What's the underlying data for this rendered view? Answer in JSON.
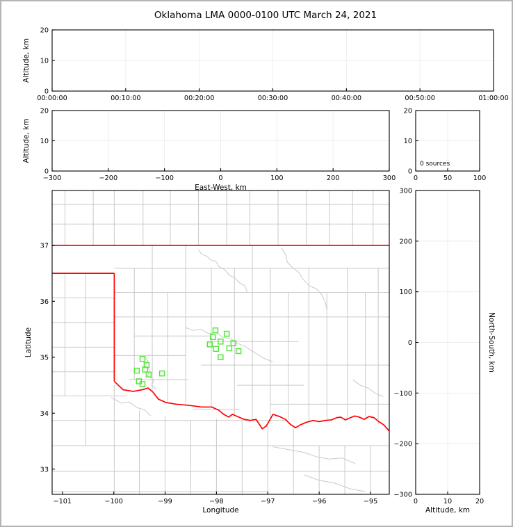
{
  "figure": {
    "title": "Oklahoma LMA 0000-0100 UTC March 24, 2021"
  },
  "style": {
    "background": "#ffffff",
    "frame_border": "#b4b4b4",
    "axis_color": "#000000",
    "grid_color": "#ededed",
    "county_color": "#c9c9c9",
    "state_border_color": "#ff0000",
    "source_color": "#55e63c"
  },
  "chart_data": [
    {
      "id": "time_height",
      "type": "scatter",
      "title": "",
      "xlabel": "",
      "ylabel": "Altitude, km",
      "xlim": [
        0,
        6
      ],
      "xticks": [
        0,
        1,
        2,
        3,
        4,
        5,
        6
      ],
      "xtick_labels": [
        "00:00:00",
        "00:10:00",
        "00:20:00",
        "00:30:00",
        "00:40:00",
        "00:50:00",
        "01:00:00"
      ],
      "ylim": [
        0,
        20
      ],
      "yticks": [
        0,
        10,
        20
      ],
      "grid": true,
      "points": []
    },
    {
      "id": "ew_height",
      "type": "scatter",
      "xlabel": "East-West, km",
      "ylabel": "Altitude, km",
      "xlim": [
        -300,
        300
      ],
      "xticks": [
        -300,
        -200,
        -100,
        0,
        100,
        200,
        300
      ],
      "ylim": [
        0,
        20
      ],
      "yticks": [
        0,
        10,
        20
      ],
      "grid": true,
      "points": []
    },
    {
      "id": "alt_histogram",
      "type": "line",
      "xlabel": "",
      "ylabel": "",
      "xlim": [
        0,
        100
      ],
      "xticks": [
        0,
        50,
        100
      ],
      "ylim": [
        0,
        20
      ],
      "yticks": [
        0,
        10,
        20
      ],
      "grid": true,
      "annotation": "0 sources",
      "points": []
    },
    {
      "id": "plan_map",
      "type": "scatter",
      "xlabel": "Longitude",
      "ylabel": "Latitude",
      "xlim": [
        -101.2,
        -94.635
      ],
      "xticks": [
        -101,
        -100,
        -99,
        -98,
        -97,
        -96,
        -95
      ],
      "ylim": [
        32.55,
        37.98
      ],
      "yticks": [
        33,
        34,
        35,
        36,
        37
      ],
      "grid": false,
      "sources": [
        [
          -99.44,
          34.97
        ],
        [
          -99.36,
          34.86
        ],
        [
          -99.55,
          34.76
        ],
        [
          -99.39,
          34.78
        ],
        [
          -99.32,
          34.69
        ],
        [
          -99.06,
          34.71
        ],
        [
          -99.51,
          34.57
        ],
        [
          -99.44,
          34.52
        ],
        [
          -98.02,
          35.48
        ],
        [
          -97.8,
          35.42
        ],
        [
          -98.07,
          35.36
        ],
        [
          -97.92,
          35.28
        ],
        [
          -98.13,
          35.23
        ],
        [
          -97.67,
          35.25
        ],
        [
          -98.01,
          35.15
        ],
        [
          -97.75,
          35.16
        ],
        [
          -97.57,
          35.11
        ],
        [
          -97.92,
          35.0
        ]
      ]
    },
    {
      "id": "ns_height",
      "type": "scatter",
      "xlabel": "Altitude, km",
      "ylabel": "North-South, km",
      "xlim": [
        0,
        20
      ],
      "xticks": [
        0,
        10,
        20
      ],
      "ylim": [
        -300,
        300
      ],
      "yticks": [
        -300,
        -200,
        -100,
        0,
        100,
        200,
        300
      ],
      "grid": true,
      "points": []
    }
  ],
  "map_layers": {
    "state_border": [
      [
        [
          -101.2,
          37.0
        ],
        [
          -94.635,
          37.0
        ]
      ],
      [
        [
          -101.2,
          36.5
        ],
        [
          -99.99,
          36.5
        ]
      ],
      [
        [
          -99.99,
          36.5
        ],
        [
          -99.99,
          34.57
        ]
      ],
      [
        [
          -99.99,
          34.57
        ],
        [
          -99.82,
          34.42
        ],
        [
          -99.62,
          34.39
        ],
        [
          -99.44,
          34.42
        ],
        [
          -99.33,
          34.45
        ],
        [
          -99.24,
          34.38
        ],
        [
          -99.13,
          34.25
        ],
        [
          -98.98,
          34.19
        ],
        [
          -98.78,
          34.16
        ],
        [
          -98.53,
          34.14
        ],
        [
          -98.29,
          34.11
        ],
        [
          -98.09,
          34.11
        ],
        [
          -97.95,
          34.05
        ],
        [
          -97.86,
          33.98
        ],
        [
          -97.76,
          33.93
        ],
        [
          -97.69,
          33.98
        ],
        [
          -97.59,
          33.94
        ],
        [
          -97.46,
          33.89
        ],
        [
          -97.34,
          33.87
        ],
        [
          -97.23,
          33.89
        ],
        [
          -97.15,
          33.78
        ],
        [
          -97.11,
          33.72
        ],
        [
          -97.03,
          33.77
        ],
        [
          -96.98,
          33.85
        ],
        [
          -96.9,
          33.98
        ],
        [
          -96.77,
          33.94
        ],
        [
          -96.66,
          33.89
        ],
        [
          -96.56,
          33.8
        ],
        [
          -96.46,
          33.74
        ],
        [
          -96.37,
          33.79
        ],
        [
          -96.24,
          33.84
        ],
        [
          -96.12,
          33.87
        ],
        [
          -96.0,
          33.85
        ],
        [
          -95.88,
          33.87
        ],
        [
          -95.76,
          33.88
        ],
        [
          -95.66,
          33.92
        ],
        [
          -95.58,
          33.93
        ],
        [
          -95.49,
          33.88
        ],
        [
          -95.39,
          33.92
        ],
        [
          -95.31,
          33.95
        ],
        [
          -95.22,
          33.93
        ],
        [
          -95.12,
          33.89
        ],
        [
          -95.03,
          33.94
        ],
        [
          -94.93,
          33.92
        ],
        [
          -94.84,
          33.85
        ],
        [
          -94.74,
          33.79
        ],
        [
          -94.635,
          33.68
        ]
      ]
    ],
    "county_h": [
      [
        37.38,
        -101.2,
        -94.635
      ],
      [
        37.73,
        -101.2,
        -94.635
      ],
      [
        36.59,
        -99.99,
        -94.635
      ],
      [
        36.16,
        -99.99,
        -94.635
      ],
      [
        35.72,
        -99.99,
        -94.635
      ],
      [
        35.38,
        -99.6,
        -98.1
      ],
      [
        35.28,
        -98.1,
        -96.4
      ],
      [
        35.03,
        -99.99,
        -98.6
      ],
      [
        34.86,
        -98.3,
        -94.635
      ],
      [
        34.6,
        -99.7,
        -98.55
      ],
      [
        34.5,
        -97.6,
        -96.3
      ],
      [
        34.16,
        -96.95,
        -94.635
      ],
      [
        34.07,
        -98.45,
        -97.55
      ],
      [
        36.06,
        -101.2,
        -99.99
      ],
      [
        35.62,
        -101.2,
        -99.99
      ],
      [
        35.18,
        -101.2,
        -99.99
      ],
      [
        34.74,
        -101.2,
        -99.99
      ],
      [
        34.31,
        -101.2,
        -99.75
      ],
      [
        33.87,
        -101.2,
        -96.6
      ],
      [
        33.42,
        -101.2,
        -94.635
      ],
      [
        32.96,
        -101.2,
        -94.635
      ],
      [
        32.6,
        -101.2,
        -97.0
      ]
    ],
    "county_v": [
      [
        -100.95,
        37.0,
        38.0
      ],
      [
        -100.4,
        37.0,
        38.0
      ],
      [
        -99.99,
        37.0,
        38.0
      ],
      [
        -99.43,
        37.0,
        38.0
      ],
      [
        -98.9,
        37.0,
        38.0
      ],
      [
        -98.35,
        37.0,
        38.0
      ],
      [
        -97.8,
        37.0,
        38.0
      ],
      [
        -97.35,
        37.0,
        38.0
      ],
      [
        -96.8,
        37.0,
        38.0
      ],
      [
        -96.25,
        37.0,
        38.0
      ],
      [
        -95.8,
        37.0,
        38.0
      ],
      [
        -95.35,
        37.0,
        38.0
      ],
      [
        -94.95,
        37.0,
        38.0
      ],
      [
        -100.95,
        34.31,
        36.5
      ],
      [
        -100.55,
        33.42,
        36.5
      ],
      [
        -99.6,
        34.6,
        36.59
      ],
      [
        -99.25,
        34.4,
        37.0
      ],
      [
        -98.95,
        34.19,
        36.16
      ],
      [
        -98.6,
        34.14,
        37.0
      ],
      [
        -98.1,
        34.11,
        36.59
      ],
      [
        -97.65,
        33.96,
        36.59
      ],
      [
        -97.3,
        33.88,
        37.0
      ],
      [
        -96.95,
        33.85,
        36.59
      ],
      [
        -96.6,
        33.88,
        36.16
      ],
      [
        -96.2,
        33.85,
        36.59
      ],
      [
        -95.85,
        33.87,
        36.16
      ],
      [
        -95.45,
        33.9,
        36.59
      ],
      [
        -95.1,
        33.9,
        36.16
      ],
      [
        -94.85,
        33.8,
        36.59
      ],
      [
        -99.99,
        32.55,
        34.5
      ],
      [
        -99.5,
        32.55,
        34.05
      ],
      [
        -99.0,
        32.55,
        33.95
      ],
      [
        -98.5,
        32.55,
        33.87
      ],
      [
        -98.0,
        32.55,
        33.9
      ],
      [
        -97.5,
        32.55,
        33.87
      ],
      [
        -97.0,
        32.55,
        33.78
      ],
      [
        -96.5,
        32.55,
        33.72
      ],
      [
        -96.0,
        32.55,
        33.42
      ],
      [
        -95.5,
        32.55,
        33.42
      ],
      [
        -95.0,
        32.55,
        33.42
      ]
    ],
    "county_paths": [
      [
        [
          -98.35,
          36.93
        ],
        [
          -98.3,
          36.85
        ],
        [
          -98.18,
          36.8
        ],
        [
          -98.1,
          36.73
        ],
        [
          -98.02,
          36.72
        ],
        [
          -97.95,
          36.62
        ],
        [
          -97.85,
          36.57
        ],
        [
          -97.75,
          36.47
        ],
        [
          -97.65,
          36.42
        ],
        [
          -97.55,
          36.33
        ],
        [
          -97.45,
          36.28
        ],
        [
          -97.4,
          36.16
        ]
      ],
      [
        [
          -96.73,
          36.95
        ],
        [
          -96.65,
          36.82
        ],
        [
          -96.62,
          36.7
        ],
        [
          -96.52,
          36.6
        ],
        [
          -96.4,
          36.52
        ],
        [
          -96.32,
          36.4
        ],
        [
          -96.2,
          36.28
        ],
        [
          -96.05,
          36.22
        ],
        [
          -95.95,
          36.12
        ],
        [
          -95.88,
          35.98
        ],
        [
          -95.85,
          35.85
        ]
      ],
      [
        [
          -98.6,
          35.53
        ],
        [
          -98.45,
          35.48
        ],
        [
          -98.3,
          35.5
        ],
        [
          -98.15,
          35.42
        ],
        [
          -98.0,
          35.44
        ],
        [
          -97.88,
          35.36
        ],
        [
          -97.72,
          35.33
        ],
        [
          -97.6,
          35.25
        ],
        [
          -97.45,
          35.2
        ],
        [
          -97.32,
          35.12
        ],
        [
          -97.2,
          35.05
        ],
        [
          -97.05,
          34.97
        ],
        [
          -96.9,
          34.92
        ]
      ],
      [
        [
          -99.42,
          35.03
        ],
        [
          -99.33,
          34.93
        ],
        [
          -99.4,
          34.85
        ],
        [
          -99.3,
          34.77
        ],
        [
          -99.34,
          34.67
        ],
        [
          -99.22,
          34.6
        ],
        [
          -99.26,
          34.5
        ],
        [
          -99.17,
          34.43
        ]
      ],
      [
        [
          -100.05,
          34.28
        ],
        [
          -99.85,
          34.18
        ],
        [
          -99.7,
          34.2
        ],
        [
          -99.55,
          34.1
        ],
        [
          -99.4,
          34.06
        ],
        [
          -99.28,
          33.95
        ]
      ],
      [
        [
          -96.9,
          33.4
        ],
        [
          -96.6,
          33.35
        ],
        [
          -96.3,
          33.3
        ],
        [
          -96.05,
          33.22
        ],
        [
          -95.8,
          33.18
        ],
        [
          -95.55,
          33.2
        ],
        [
          -95.3,
          33.1
        ]
      ],
      [
        [
          -96.3,
          32.9
        ],
        [
          -96.0,
          32.8
        ],
        [
          -95.7,
          32.75
        ],
        [
          -95.4,
          32.65
        ],
        [
          -95.1,
          32.6
        ]
      ],
      [
        [
          -95.35,
          34.6
        ],
        [
          -95.2,
          34.5
        ],
        [
          -95.05,
          34.45
        ],
        [
          -94.9,
          34.35
        ],
        [
          -94.75,
          34.3
        ]
      ]
    ]
  }
}
